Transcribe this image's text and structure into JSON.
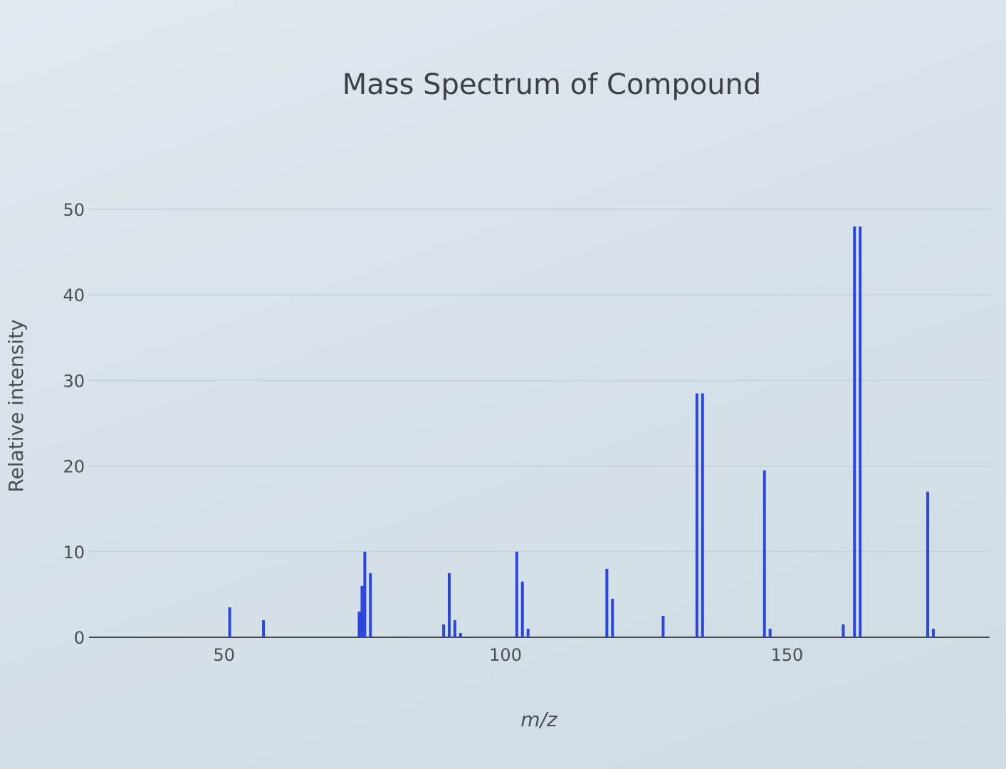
{
  "chart_data": {
    "type": "bar",
    "title": "Mass Spectrum of Compound",
    "xlabel": "m/z",
    "ylabel": "Relative intensity",
    "xlim": [
      26,
      186
    ],
    "ylim": [
      0,
      52
    ],
    "yticks": [
      0,
      10,
      20,
      30,
      40,
      50
    ],
    "xticks": [
      50,
      100,
      150
    ],
    "grid": true,
    "color": "#2b46e0",
    "x": [
      51,
      57,
      74,
      74.5,
      75,
      76,
      89,
      90,
      91,
      92,
      102,
      103,
      104,
      118,
      119,
      128,
      134,
      135,
      146,
      147,
      160,
      162,
      163,
      175,
      176
    ],
    "values": [
      3.5,
      2,
      3,
      6,
      10,
      7.5,
      1.5,
      7.5,
      2,
      0.5,
      10,
      6.5,
      1,
      8,
      4.5,
      2.5,
      28.5,
      28.5,
      19.5,
      1,
      1.5,
      48,
      48,
      17,
      1
    ]
  }
}
